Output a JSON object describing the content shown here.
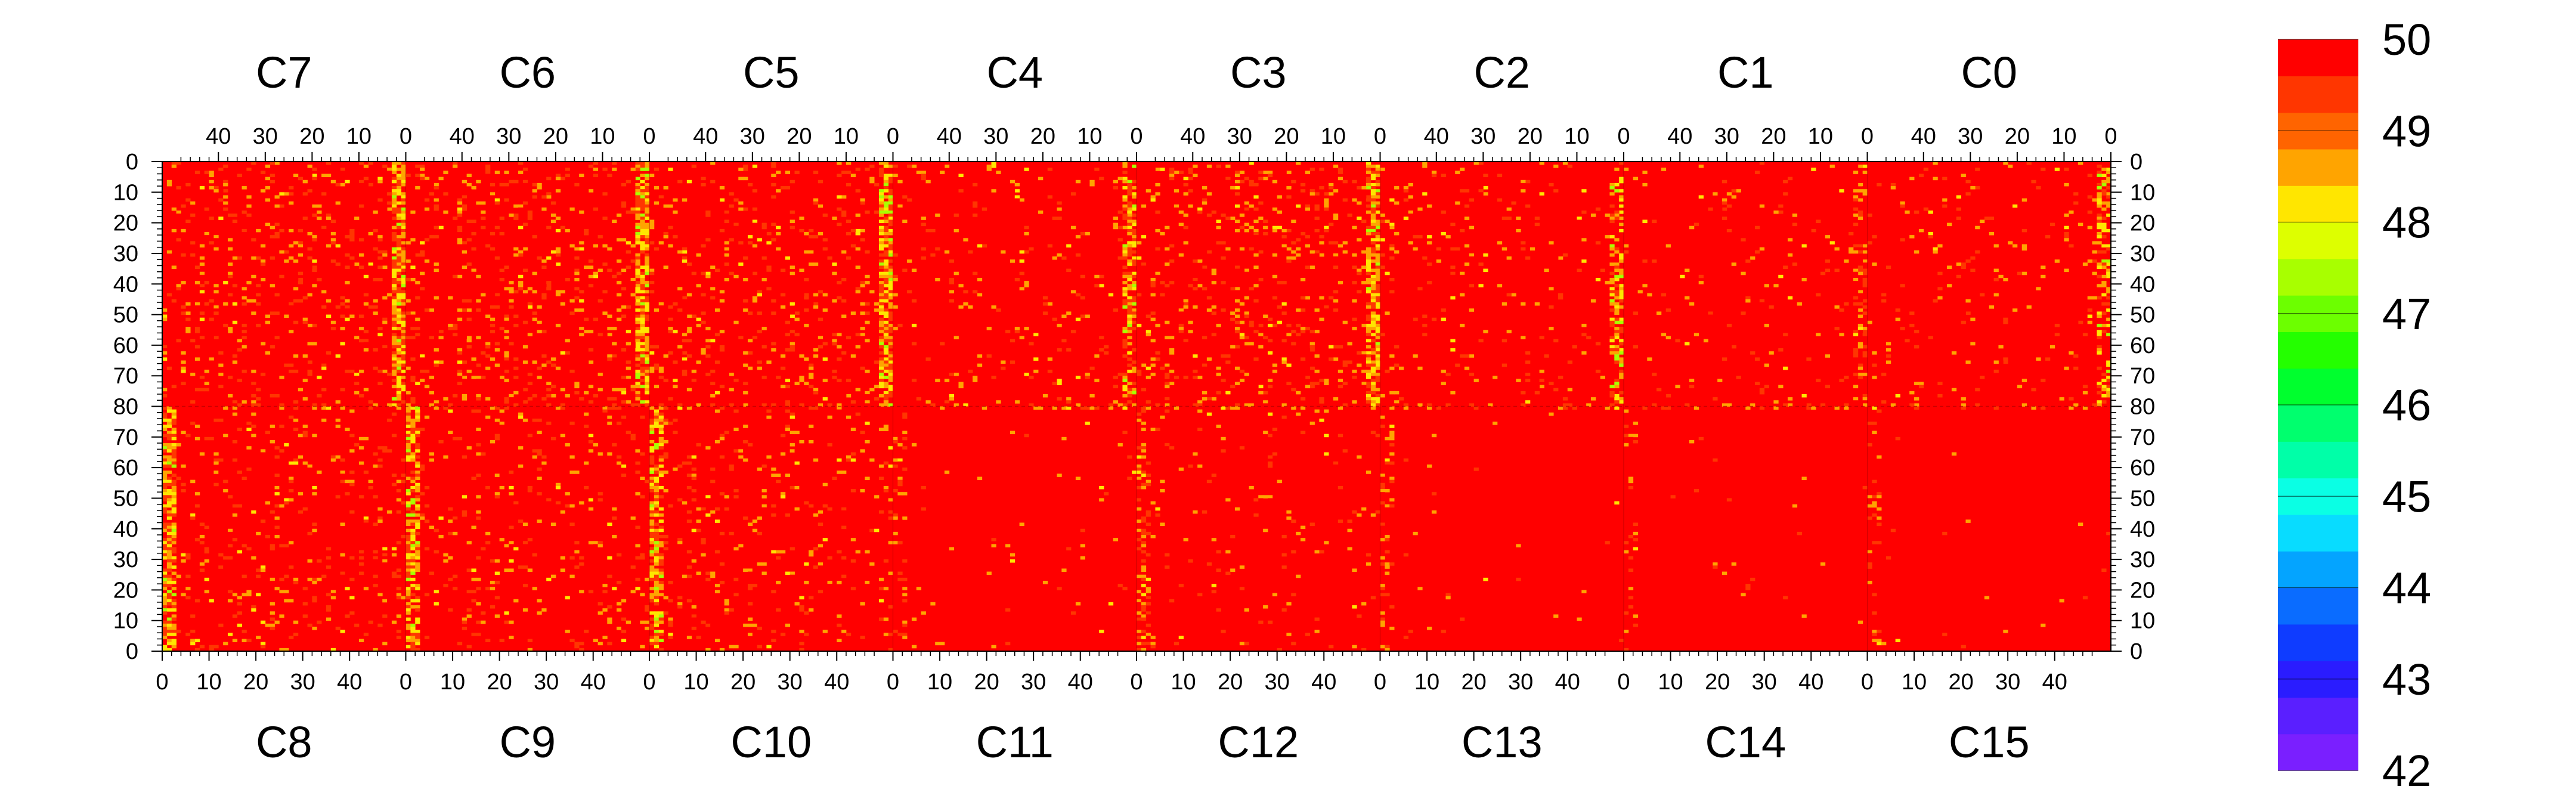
{
  "chart_data": {
    "type": "heatmap",
    "title": "",
    "xlabel": "",
    "ylabel": "",
    "z_range": [
      42,
      50
    ],
    "grid": false,
    "legend": "right (color scale bar)",
    "colorbar": {
      "tick_labels": [
        "50",
        "49",
        "48",
        "47",
        "46",
        "45",
        "44",
        "43",
        "42"
      ],
      "colors": [
        "#7a1fff",
        "#5a1fff",
        "#2a1cff",
        "#0f3cff",
        "#0a6cff",
        "#04a4ff",
        "#08dcff",
        "#0affe4",
        "#00ffa8",
        "#00ff6e",
        "#00ff2e",
        "#24ff00",
        "#6cff00",
        "#a8ff00",
        "#ddff00",
        "#ffe600",
        "#ffa400",
        "#ff6400",
        "#ff3600",
        "#ff0000"
      ]
    },
    "top_row": {
      "chip_labels": [
        "C7",
        "C6",
        "C5",
        "C4",
        "C3",
        "C2",
        "C1",
        "C0"
      ],
      "column_tick_labels": [
        "40",
        "30",
        "20",
        "10",
        "0"
      ],
      "row_tick_labels": [
        "0",
        "10",
        "20",
        "30",
        "40",
        "50",
        "60",
        "70",
        "80"
      ]
    },
    "bottom_row": {
      "chip_labels": [
        "C8",
        "C9",
        "C10",
        "C11",
        "C12",
        "C13",
        "C14",
        "C15"
      ],
      "column_tick_labels": [
        "0",
        "10",
        "20",
        "30",
        "40"
      ],
      "row_tick_labels": [
        "80",
        "70",
        "60",
        "50",
        "40",
        "30",
        "20",
        "10",
        "0"
      ]
    },
    "axes": {
      "column_range": [
        0,
        52
      ],
      "row_range_per_half": [
        0,
        80
      ]
    },
    "pixel_statistics": {
      "dominant_value": 50,
      "typical_minimum": 48,
      "outlier_minimum": 47,
      "columns_with_lower_values_near": 0
    }
  }
}
